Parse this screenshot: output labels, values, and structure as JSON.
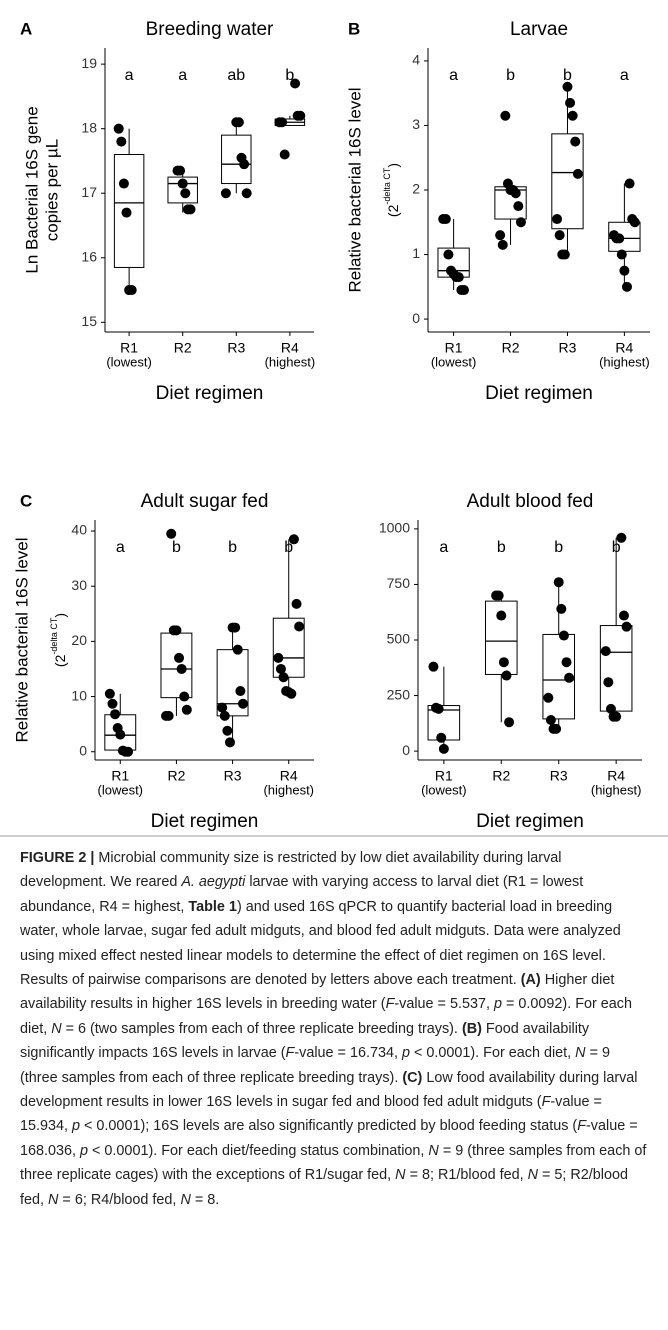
{
  "chart_data": [
    {
      "type": "box",
      "panel": "A",
      "title": "Breeding water",
      "y_label": [
        "Ln Bacterial 16S gene",
        "copies per µL"
      ],
      "x_label": "Diet regimen",
      "categories": [
        "R1",
        "R2",
        "R3",
        "R4"
      ],
      "category_notes": [
        "(lowest)",
        null,
        null,
        "(highest)"
      ],
      "letters": [
        "a",
        "a",
        "ab",
        "b"
      ],
      "ylim": [
        14.85,
        19.25
      ],
      "yticks": [
        15,
        16,
        17,
        18,
        19
      ],
      "boxes": [
        {
          "q1": 15.85,
          "median": 16.85,
          "q3": 17.6,
          "whisker_low": 15.5,
          "whisker_high": 18.0,
          "points": [
            18.0,
            17.8,
            17.15,
            16.7,
            15.5,
            15.5
          ]
        },
        {
          "q1": 16.85,
          "median": 17.15,
          "q3": 17.25,
          "whisker_low": 16.7,
          "whisker_high": 17.35,
          "points": [
            17.35,
            17.35,
            17.15,
            17.0,
            16.75,
            16.75
          ]
        },
        {
          "q1": 17.15,
          "median": 17.45,
          "q3": 17.9,
          "whisker_low": 17.0,
          "whisker_high": 18.1,
          "points": [
            18.1,
            18.1,
            17.55,
            17.45,
            17.0,
            17.0
          ]
        },
        {
          "q1": 18.05,
          "median": 18.1,
          "q3": 18.15,
          "whisker_low": 18.05,
          "whisker_high": 18.2,
          "points": [
            18.7,
            18.2,
            18.2,
            18.1,
            18.1,
            17.6
          ]
        }
      ]
    },
    {
      "type": "box",
      "panel": "B",
      "title": "Larvae",
      "y_label": [
        "Relative bacterial 16S level"
      ],
      "y_label_sub": [
        "(2",
        "-delta CT",
        ")"
      ],
      "x_label": "Diet regimen",
      "categories": [
        "R1",
        "R2",
        "R3",
        "R4"
      ],
      "category_notes": [
        "(lowest)",
        null,
        null,
        "(highest)"
      ],
      "letters": [
        "a",
        "b",
        "b",
        "a"
      ],
      "ylim": [
        -0.2,
        4.2
      ],
      "yticks": [
        0,
        1,
        2,
        3,
        4
      ],
      "boxes": [
        {
          "q1": 0.65,
          "median": 0.75,
          "q3": 1.1,
          "whisker_low": 0.45,
          "whisker_high": 1.55,
          "points": [
            1.55,
            1.55,
            1.0,
            0.75,
            0.7,
            0.65,
            0.65,
            0.45,
            0.45
          ]
        },
        {
          "q1": 1.55,
          "median": 2.0,
          "q3": 2.05,
          "whisker_low": 1.15,
          "whisker_high": 2.1,
          "points": [
            3.15,
            2.1,
            2.0,
            2.0,
            1.95,
            1.75,
            1.5,
            1.3,
            1.15
          ]
        },
        {
          "q1": 1.4,
          "median": 2.27,
          "q3": 2.87,
          "whisker_low": 1.0,
          "whisker_high": 3.6,
          "points": [
            3.6,
            3.35,
            3.15,
            2.75,
            2.25,
            1.55,
            1.3,
            1.0,
            1.0
          ]
        },
        {
          "q1": 1.05,
          "median": 1.25,
          "q3": 1.5,
          "whisker_low": 0.5,
          "whisker_high": 2.1,
          "points": [
            2.1,
            1.55,
            1.5,
            1.3,
            1.25,
            1.25,
            1.0,
            0.75,
            0.5
          ]
        }
      ]
    },
    {
      "type": "box",
      "panel": "C",
      "title": "Adult sugar fed",
      "y_label": [
        "Relative bacterial 16S level"
      ],
      "y_label_sub": [
        "(2",
        "-delta CT",
        ")"
      ],
      "x_label": "Diet regimen",
      "categories": [
        "R1",
        "R2",
        "R3",
        "R4"
      ],
      "category_notes": [
        "(lowest)",
        null,
        null,
        "(highest)"
      ],
      "letters": [
        "a",
        "b",
        "b",
        "b"
      ],
      "ylim": [
        -1.5,
        42
      ],
      "yticks": [
        0,
        10,
        20,
        30,
        40
      ],
      "boxes": [
        {
          "q1": 0.3,
          "median": 3,
          "q3": 6.7,
          "whisker_low": 0,
          "whisker_high": 10.5,
          "points": [
            10.5,
            8.7,
            6.8,
            4.3,
            3.1,
            0.2,
            0,
            0
          ]
        },
        {
          "q1": 9.8,
          "median": 15,
          "q3": 21.5,
          "whisker_low": 6.5,
          "whisker_high": 22,
          "points": [
            39.5,
            22,
            22,
            17,
            15,
            10,
            7.6,
            6.5,
            6.5
          ]
        },
        {
          "q1": 6.5,
          "median": 8.7,
          "q3": 18.5,
          "whisker_low": 1.7,
          "whisker_high": 22.5,
          "points": [
            22.5,
            22.5,
            18.5,
            11,
            8.7,
            8,
            6.5,
            3.8,
            1.7
          ]
        },
        {
          "q1": 13.5,
          "median": 17,
          "q3": 24.2,
          "whisker_low": 10.5,
          "whisker_high": 38.5,
          "points": [
            38.5,
            26.8,
            22.7,
            17,
            15,
            13.5,
            11,
            10.8,
            10.5
          ]
        }
      ]
    },
    {
      "type": "box",
      "title": "Adult blood fed",
      "x_label": "Diet regimen",
      "categories": [
        "R1",
        "R2",
        "R3",
        "R4"
      ],
      "category_notes": [
        "(lowest)",
        null,
        null,
        "(highest)"
      ],
      "letters": [
        "a",
        "b",
        "b",
        "b"
      ],
      "ylim": [
        -40,
        1040
      ],
      "yticks": [
        0,
        250,
        500,
        750,
        1000
      ],
      "boxes": [
        {
          "q1": 50,
          "median": 185,
          "q3": 205,
          "whisker_low": 10,
          "whisker_high": 380,
          "points": [
            380,
            195,
            190,
            60,
            10
          ]
        },
        {
          "q1": 345,
          "median": 495,
          "q3": 675,
          "whisker_low": 130,
          "whisker_high": 700,
          "points": [
            700,
            700,
            610,
            400,
            340,
            130
          ]
        },
        {
          "q1": 145,
          "median": 320,
          "q3": 525,
          "whisker_low": 100,
          "whisker_high": 760,
          "points": [
            760,
            640,
            520,
            400,
            330,
            240,
            140,
            100,
            100
          ]
        },
        {
          "q1": 180,
          "median": 445,
          "q3": 565,
          "whisker_low": 155,
          "whisker_high": 960,
          "points": [
            960,
            610,
            560,
            450,
            310,
            190,
            155,
            155
          ]
        }
      ]
    }
  ],
  "caption": [
    {
      "text": "FIGURE 2 |",
      "style": "bold"
    },
    {
      "text": " Microbial community size is restricted by low diet availability during larval development. We reared ",
      "style": "plain"
    },
    {
      "text": "A. aegypti",
      "style": "italic"
    },
    {
      "text": " larvae with varying access to larval diet (R1 = lowest abundance, R4 = highest, ",
      "style": "plain"
    },
    {
      "text": "Table 1",
      "style": "bold"
    },
    {
      "text": ") and used 16S qPCR to quantify bacterial load in breeding water, whole larvae, sugar fed adult midguts, and blood fed adult midguts. Data were analyzed using mixed effect nested linear models to determine the effect of diet regimen on 16S level. Results of pairwise comparisons are denoted by letters above each treatment. ",
      "style": "plain"
    },
    {
      "text": "(A)",
      "style": "bold"
    },
    {
      "text": " Higher diet availability results in higher 16S levels in breeding water (",
      "style": "plain"
    },
    {
      "text": "F",
      "style": "italic"
    },
    {
      "text": "-value = 5.537, ",
      "style": "plain"
    },
    {
      "text": "p",
      "style": "italic"
    },
    {
      "text": " = 0.0092). For each diet, ",
      "style": "plain"
    },
    {
      "text": "N",
      "style": "italic"
    },
    {
      "text": " = 6 (two samples from each of three replicate breeding trays). ",
      "style": "plain"
    },
    {
      "text": "(B)",
      "style": "bold"
    },
    {
      "text": " Food availability significantly impacts 16S levels in larvae (",
      "style": "plain"
    },
    {
      "text": "F",
      "style": "italic"
    },
    {
      "text": "-value = 16.734, ",
      "style": "plain"
    },
    {
      "text": "p",
      "style": "italic"
    },
    {
      "text": " < 0.0001). For each diet, ",
      "style": "plain"
    },
    {
      "text": "N",
      "style": "italic"
    },
    {
      "text": " = 9 (three samples from each of three replicate breeding trays). ",
      "style": "plain"
    },
    {
      "text": "(C)",
      "style": "bold"
    },
    {
      "text": " Low food availability during larval development results in lower 16S levels in sugar fed and blood fed adult midguts (",
      "style": "plain"
    },
    {
      "text": "F",
      "style": "italic"
    },
    {
      "text": "-value = 15.934, ",
      "style": "plain"
    },
    {
      "text": "p",
      "style": "italic"
    },
    {
      "text": " < 0.0001); 16S levels are also significantly predicted by blood feeding status (",
      "style": "plain"
    },
    {
      "text": "F",
      "style": "italic"
    },
    {
      "text": "-value = 168.036, ",
      "style": "plain"
    },
    {
      "text": "p",
      "style": "italic"
    },
    {
      "text": " < 0.0001). For each diet/feeding status combination, ",
      "style": "plain"
    },
    {
      "text": "N",
      "style": "italic"
    },
    {
      "text": " = 9 (three samples from each of three replicate cages) with the exceptions of R1/sugar fed, ",
      "style": "plain"
    },
    {
      "text": "N",
      "style": "italic"
    },
    {
      "text": " = 8; R1/blood fed, ",
      "style": "plain"
    },
    {
      "text": "N",
      "style": "italic"
    },
    {
      "text": " = 5; R2/blood fed, ",
      "style": "plain"
    },
    {
      "text": "N",
      "style": "italic"
    },
    {
      "text": " = 6; R4/blood fed, ",
      "style": "plain"
    },
    {
      "text": "N",
      "style": "italic"
    },
    {
      "text": " = 8.",
      "style": "plain"
    }
  ]
}
